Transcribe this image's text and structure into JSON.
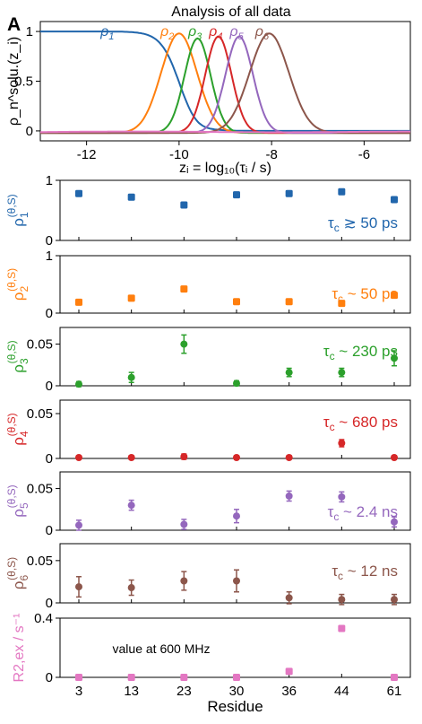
{
  "panel_letter": "A",
  "title": "Analysis of all data",
  "colors": {
    "rho1": "#2166ac",
    "rho2": "#ff7f0e",
    "rho3": "#2ca02c",
    "rho4": "#d62728",
    "rho5": "#9467bd",
    "rho6": "#8c564b",
    "r2ex": "#e377c2"
  },
  "chart_data": [
    {
      "type": "line",
      "title": "Analysis of all data",
      "xlabel": "z_i = log10(τ_i / s)",
      "ylabel": "ρ_n^solu.(z_i)",
      "xlim": [
        -13,
        -5
      ],
      "ylim": [
        -0.1,
        1.1
      ],
      "xticks": [
        -12,
        -10,
        -8,
        -6
      ],
      "yticks": [
        0,
        0.5,
        1
      ],
      "series": [
        {
          "name": "ρ1",
          "center": -10.0,
          "width": 0.45,
          "kind": "sigmoid"
        },
        {
          "name": "ρ2",
          "center": -10.0,
          "width": 0.55,
          "kind": "peak",
          "height": 1.0
        },
        {
          "name": "ρ3",
          "center": -9.6,
          "width": 0.4,
          "kind": "peak",
          "height": 0.95
        },
        {
          "name": "ρ4",
          "center": -9.15,
          "width": 0.4,
          "kind": "peak",
          "height": 0.97
        },
        {
          "name": "ρ5",
          "center": -8.7,
          "width": 0.42,
          "kind": "peak",
          "height": 0.97
        },
        {
          "name": "ρ6",
          "center": -8.05,
          "width": 0.6,
          "kind": "peak",
          "height": 1.0
        },
        {
          "name": "",
          "center": -9.0,
          "width": 3.0,
          "kind": "flat"
        }
      ]
    },
    {
      "type": "scatter",
      "ylabel": "ρ1^(θ,S)",
      "annotation": "τc ≳ 50 ps",
      "categories": [
        "3",
        "13",
        "23",
        "30",
        "36",
        "44",
        "61"
      ],
      "ylim": [
        0,
        1
      ],
      "yticks": [
        "0",
        "1"
      ],
      "values": [
        0.78,
        0.72,
        0.59,
        0.76,
        0.78,
        0.81,
        0.68
      ],
      "errors": [
        0.02,
        0.02,
        0.02,
        0.02,
        0.02,
        0.02,
        0.02
      ]
    },
    {
      "type": "scatter",
      "ylabel": "ρ2^(θ,S)",
      "annotation": "τc ~ 50 ps",
      "categories": [
        "3",
        "13",
        "23",
        "30",
        "36",
        "44",
        "61"
      ],
      "ylim": [
        0,
        1
      ],
      "yticks": [
        "0",
        "1"
      ],
      "values": [
        0.19,
        0.26,
        0.42,
        0.2,
        0.2,
        0.17,
        0.31
      ],
      "errors": [
        0.02,
        0.02,
        0.02,
        0.02,
        0.02,
        0.02,
        0.02
      ]
    },
    {
      "type": "scatter",
      "ylabel": "ρ3^(θ,S)",
      "annotation": "τc ~ 230 ps",
      "categories": [
        "3",
        "13",
        "23",
        "30",
        "36",
        "44",
        "61"
      ],
      "ylim": [
        0,
        0.07
      ],
      "yticks": [
        "0",
        "0.05"
      ],
      "values": [
        0.002,
        0.01,
        0.05,
        0.003,
        0.016,
        0.016,
        0.033
      ],
      "errors": [
        0.003,
        0.006,
        0.011,
        0.003,
        0.005,
        0.005,
        0.009
      ]
    },
    {
      "type": "scatter",
      "ylabel": "ρ4^(θ,S)",
      "annotation": "τc ~ 680 ps",
      "categories": [
        "3",
        "13",
        "23",
        "30",
        "36",
        "44",
        "61"
      ],
      "ylim": [
        0,
        0.065
      ],
      "yticks": [
        "0",
        "0.05"
      ],
      "values": [
        0.001,
        0.001,
        0.002,
        0.001,
        0.001,
        0.017,
        0.001
      ],
      "errors": [
        0.002,
        0.002,
        0.003,
        0.002,
        0.002,
        0.004,
        0.002
      ]
    },
    {
      "type": "scatter",
      "ylabel": "ρ5^(θ,S)",
      "annotation": "τc ~ 2.4 ns",
      "categories": [
        "3",
        "13",
        "23",
        "30",
        "36",
        "44",
        "61"
      ],
      "ylim": [
        0,
        0.07
      ],
      "yticks": [
        "0",
        "0.05"
      ],
      "values": [
        0.006,
        0.03,
        0.007,
        0.017,
        0.041,
        0.04,
        0.01
      ],
      "errors": [
        0.006,
        0.006,
        0.006,
        0.008,
        0.006,
        0.006,
        0.006
      ]
    },
    {
      "type": "scatter",
      "ylabel": "ρ6^(θ,S)",
      "annotation": "τc ~ 12 ns",
      "categories": [
        "3",
        "13",
        "23",
        "30",
        "36",
        "44",
        "61"
      ],
      "ylim": [
        0,
        0.07
      ],
      "yticks": [
        "0",
        "0.05"
      ],
      "values": [
        0.019,
        0.018,
        0.026,
        0.026,
        0.006,
        0.004,
        0.004
      ],
      "errors": [
        0.012,
        0.009,
        0.011,
        0.013,
        0.007,
        0.006,
        0.006
      ]
    },
    {
      "type": "scatter",
      "ylabel": "R2,ex / s⁻¹",
      "annotation": "value at 600 MHz",
      "categories": [
        "3",
        "13",
        "23",
        "30",
        "36",
        "44",
        "61"
      ],
      "ylim": [
        0,
        0.4
      ],
      "yticks": [
        "0",
        "0.4"
      ],
      "values": [
        0.0,
        0.0,
        0.0,
        0.0,
        0.04,
        0.33,
        0.0
      ],
      "errors": [
        0,
        0,
        0,
        0,
        0,
        0,
        0
      ],
      "xlabel": "Residue"
    }
  ]
}
